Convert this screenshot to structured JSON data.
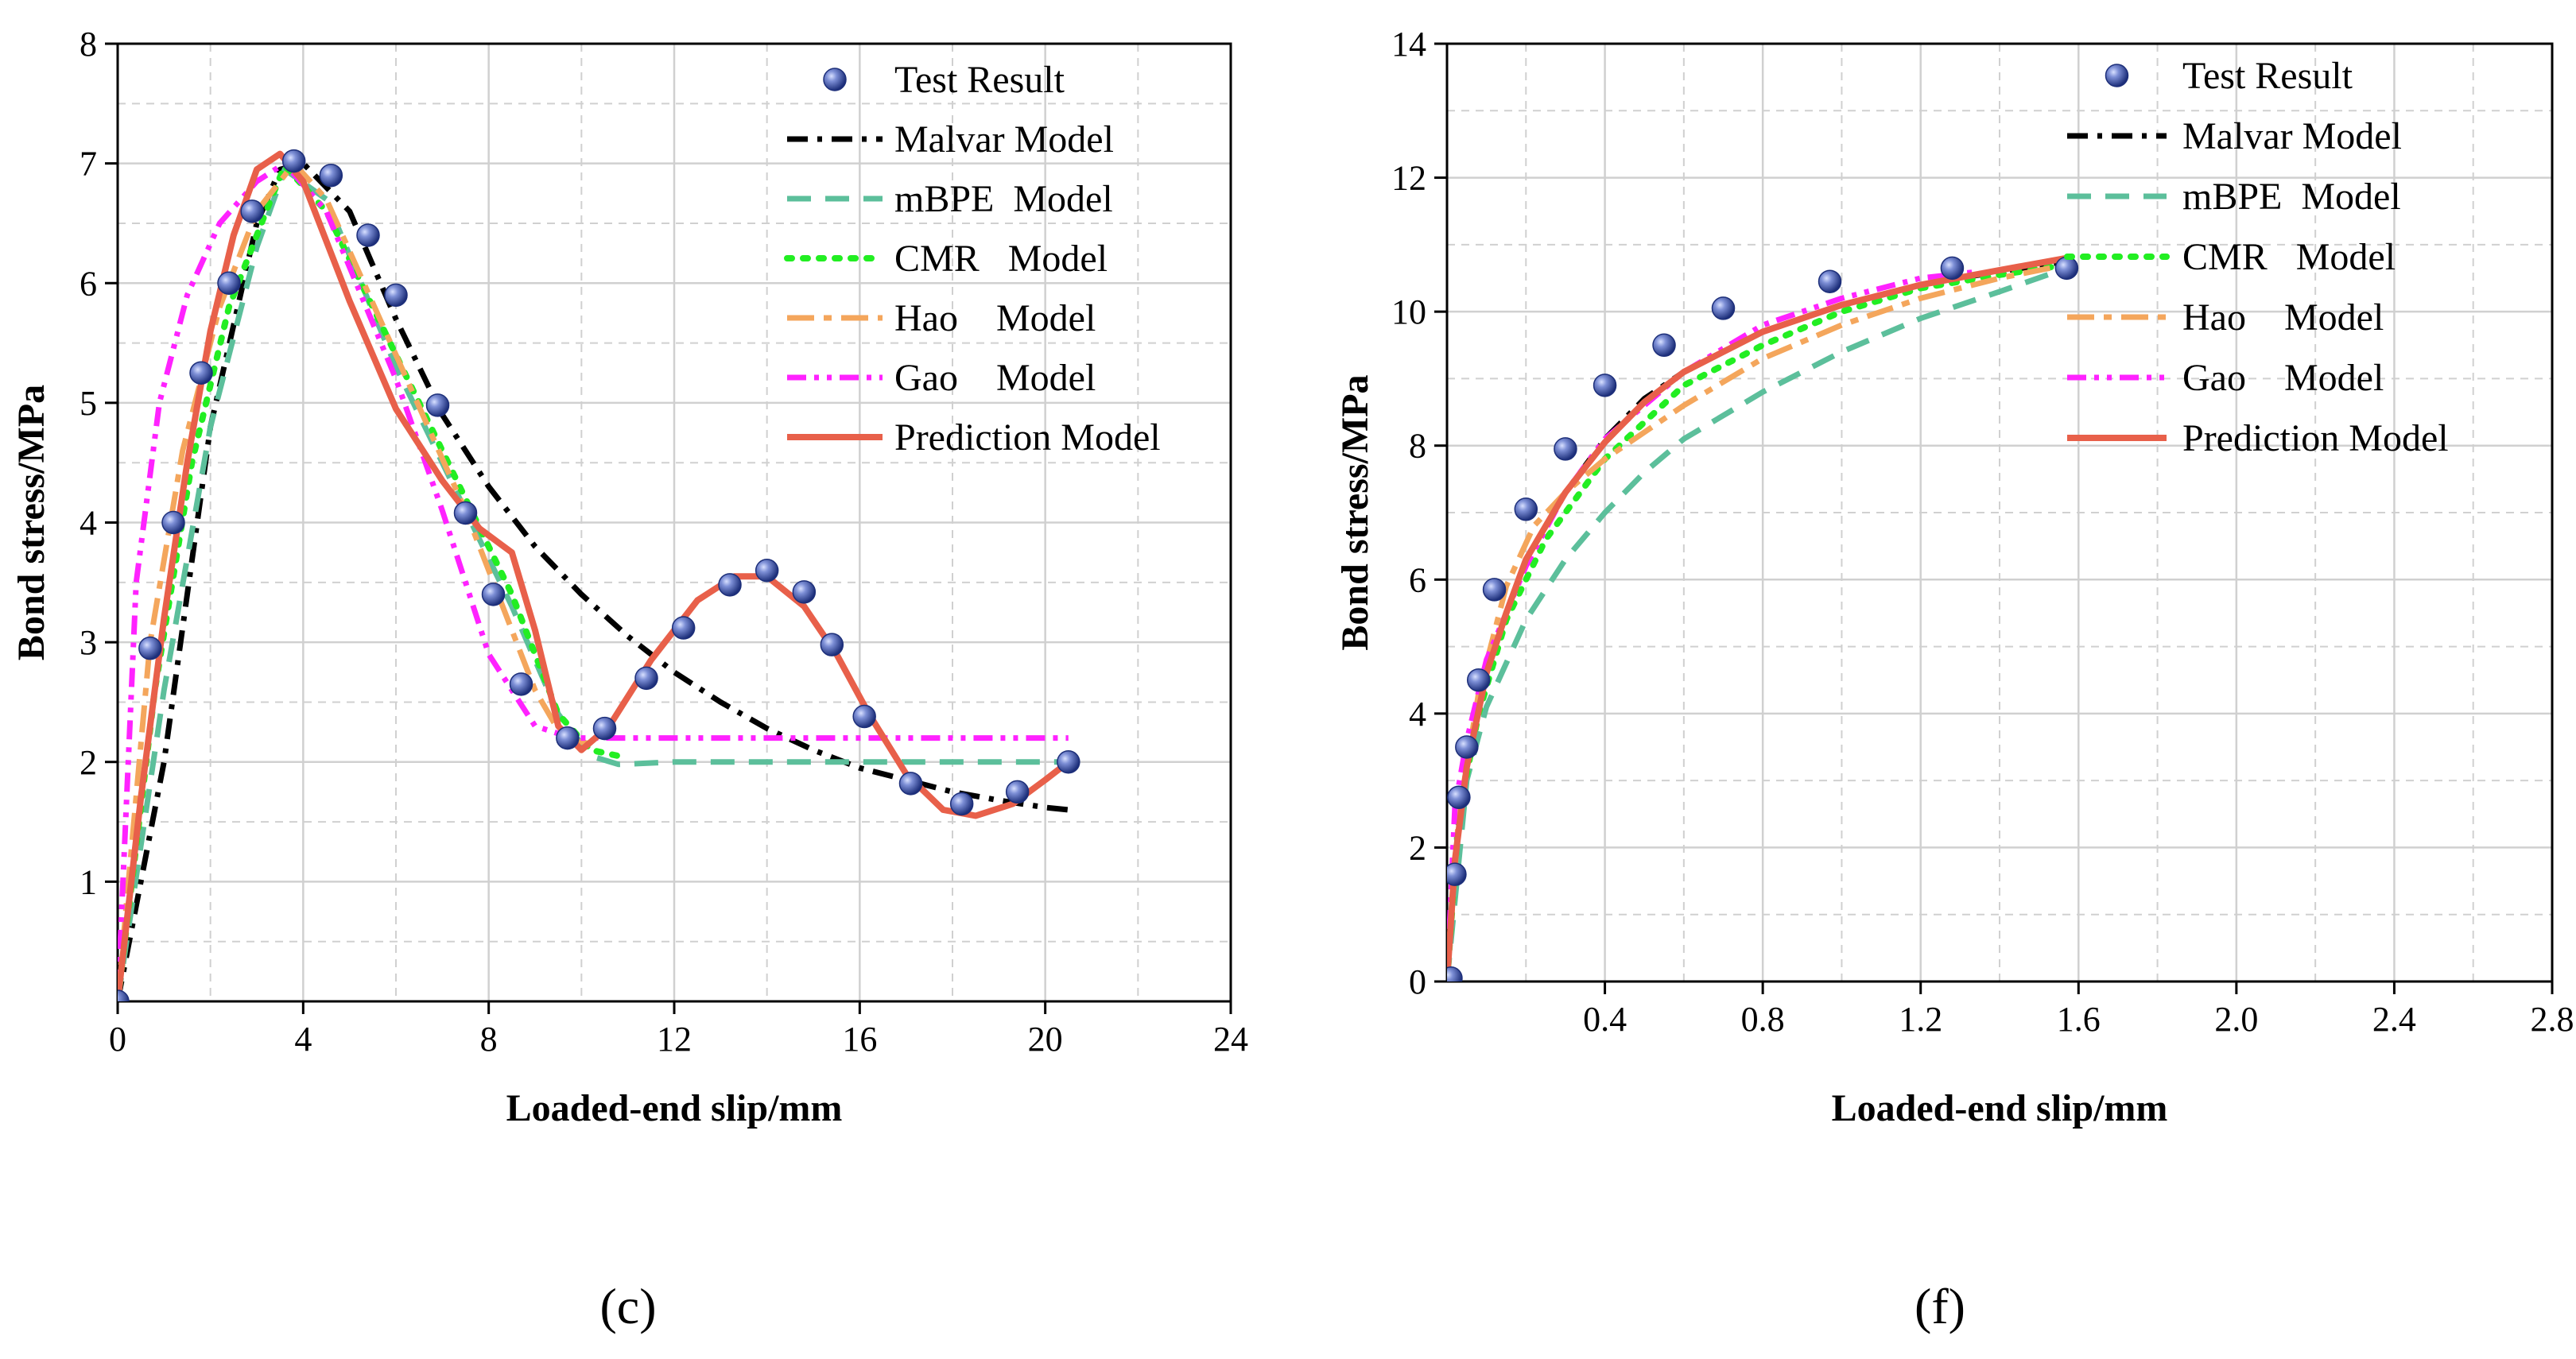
{
  "colors": {
    "test": "#3f57a8",
    "malvar": "#000000",
    "mbpe": "#5cbf9b",
    "cmr": "#22ee22",
    "hao": "#f4a65c",
    "gao": "#ff22ff",
    "prediction": "#e8604a",
    "grid": "#d0d0d0"
  },
  "chart_data": [
    {
      "type": "line",
      "panel_label": "(c)",
      "xlabel": "Loaded-end slip/mm",
      "ylabel": "Bond stress/MPa",
      "xlim": [
        0,
        24
      ],
      "ylim": [
        0,
        8
      ],
      "xticks": [
        0,
        4,
        8,
        12,
        16,
        20,
        24
      ],
      "xtick_labels": [
        "0",
        "4",
        "8",
        "12",
        "16",
        "20",
        "24"
      ],
      "yticks": [
        1,
        2,
        3,
        4,
        5,
        6,
        7,
        8
      ],
      "ytick_labels": [
        "1",
        "2",
        "3",
        "4",
        "5",
        "6",
        "7",
        "8"
      ],
      "legend_position": "top-right",
      "series": [
        {
          "name": "Test Result",
          "key": "test",
          "style": "markers",
          "x": [
            0,
            0.7,
            1.2,
            1.8,
            2.4,
            2.9,
            3.8,
            4.6,
            5.4,
            6.0,
            6.9,
            7.5,
            8.1,
            8.7,
            9.7,
            10.5,
            11.4,
            12.2,
            13.2,
            14.0,
            14.8,
            15.4,
            16.1,
            17.1,
            18.2,
            19.4,
            20.5
          ],
          "y": [
            0,
            2.95,
            4.0,
            5.25,
            6.0,
            6.6,
            7.02,
            6.9,
            6.4,
            5.9,
            4.98,
            4.08,
            3.4,
            2.65,
            2.2,
            2.28,
            2.7,
            3.12,
            3.48,
            3.6,
            3.42,
            2.98,
            2.38,
            1.82,
            1.65,
            1.75,
            2.0
          ]
        },
        {
          "name": "Malvar Model",
          "key": "malvar",
          "style": "dashdot",
          "x": [
            0,
            1,
            2,
            3,
            3.5,
            4,
            5,
            6,
            7,
            8,
            9,
            10,
            11,
            12,
            13,
            14,
            15,
            16,
            17,
            18,
            19,
            20,
            20.5
          ],
          "y": [
            0,
            2.0,
            4.8,
            6.5,
            6.95,
            7.0,
            6.6,
            5.7,
            4.9,
            4.3,
            3.8,
            3.4,
            3.05,
            2.75,
            2.5,
            2.28,
            2.1,
            1.95,
            1.85,
            1.75,
            1.68,
            1.62,
            1.6
          ]
        },
        {
          "name": "mBPE  Model",
          "key": "mbpe",
          "style": "dashed",
          "x": [
            0,
            1,
            2,
            3,
            3.6,
            4.5,
            6,
            7.5,
            8.5,
            9.5,
            10.2,
            10.8,
            12,
            16,
            20.5
          ],
          "y": [
            0,
            2.6,
            4.8,
            6.3,
            6.95,
            6.7,
            5.3,
            4.1,
            3.3,
            2.4,
            2.05,
            1.98,
            2.0,
            2.0,
            2.0
          ]
        },
        {
          "name": "CMR   Model",
          "key": "cmr",
          "style": "dotted",
          "x": [
            0,
            0.8,
            1.6,
            2.4,
            3.2,
            3.6,
            4.5,
            6,
            7.5,
            8.5,
            9.5,
            10.2,
            10.8
          ],
          "y": [
            0,
            2.6,
            4.5,
            5.8,
            6.6,
            6.98,
            6.6,
            5.4,
            4.2,
            3.4,
            2.4,
            2.1,
            2.05
          ]
        },
        {
          "name": "Hao    Model",
          "key": "hao",
          "style": "longdashdot",
          "x": [
            0,
            0.7,
            1.4,
            2.2,
            3.0,
            3.8,
            4.5,
            6,
            7.5,
            8.3,
            9.0,
            9.6,
            10.2
          ],
          "y": [
            0,
            3.0,
            4.6,
            5.8,
            6.6,
            7.0,
            6.7,
            5.4,
            4.1,
            3.3,
            2.6,
            2.2,
            2.15
          ]
        },
        {
          "name": "Gao    Model",
          "key": "gao",
          "style": "dashdotdot",
          "x": [
            0,
            0.4,
            0.9,
            1.5,
            2.2,
            3.0,
            3.6,
            4.5,
            6,
            7,
            8,
            9,
            9.8,
            10.5,
            20.5
          ],
          "y": [
            0,
            3.5,
            5.0,
            5.9,
            6.5,
            6.85,
            7.0,
            6.6,
            5.2,
            4.1,
            2.9,
            2.3,
            2.2,
            2.2,
            2.2
          ]
        },
        {
          "name": "Prediction Model",
          "key": "prediction",
          "style": "solid",
          "x": [
            0,
            0.5,
            1,
            1.5,
            2,
            2.5,
            3,
            3.5,
            4,
            5,
            6,
            7,
            7.8,
            8.5,
            9.0,
            9.5,
            10.0,
            10.6,
            11.5,
            12.5,
            13.3,
            14,
            14.8,
            15.5,
            16.2,
            17,
            17.8,
            18.5,
            19.3,
            20,
            20.5
          ],
          "y": [
            0,
            1.7,
            3.2,
            4.5,
            5.6,
            6.4,
            6.95,
            7.08,
            6.85,
            5.85,
            4.95,
            4.35,
            3.95,
            3.75,
            3.1,
            2.3,
            2.1,
            2.3,
            2.85,
            3.35,
            3.55,
            3.55,
            3.3,
            2.9,
            2.4,
            1.9,
            1.6,
            1.55,
            1.65,
            1.85,
            2.0
          ]
        }
      ],
      "legend": [
        {
          "key": "test",
          "label": "Test Result"
        },
        {
          "key": "malvar",
          "label": "Malvar Model"
        },
        {
          "key": "mbpe",
          "label": "mBPE  Model"
        },
        {
          "key": "cmr",
          "label": "CMR   Model"
        },
        {
          "key": "hao",
          "label": "Hao    Model"
        },
        {
          "key": "gao",
          "label": "Gao    Model"
        },
        {
          "key": "prediction",
          "label": "Prediction Model"
        }
      ]
    },
    {
      "type": "line",
      "panel_label": "(f)",
      "xlabel": "Loaded-end slip/mm",
      "ylabel": "Bond stress/MPa",
      "xlim": [
        0,
        2.8
      ],
      "ylim": [
        0,
        14
      ],
      "xticks": [
        0.4,
        0.8,
        1.2,
        1.6,
        2.0,
        2.4,
        2.8
      ],
      "xtick_labels": [
        "0.4",
        "0.8",
        "1.2",
        "1.6",
        "2.0",
        "2.4",
        "2.8"
      ],
      "yticks": [
        0,
        2,
        4,
        6,
        8,
        10,
        12,
        14
      ],
      "ytick_labels": [
        "0",
        "2",
        "4",
        "6",
        "8",
        "10",
        "12",
        "14"
      ],
      "legend_position": "top-right",
      "series": [
        {
          "name": "Test Result",
          "key": "test",
          "style": "markers",
          "x": [
            0.01,
            0.02,
            0.03,
            0.05,
            0.08,
            0.12,
            0.2,
            0.3,
            0.4,
            0.55,
            0.7,
            0.97,
            1.28,
            1.57
          ],
          "y": [
            0.05,
            1.6,
            2.75,
            3.5,
            4.5,
            5.85,
            7.05,
            7.95,
            8.9,
            9.5,
            10.05,
            10.45,
            10.65,
            10.65
          ]
        },
        {
          "name": "Malvar Model",
          "key": "malvar",
          "style": "dashdot",
          "x": [
            0,
            0.02,
            0.05,
            0.1,
            0.15,
            0.2,
            0.3,
            0.4,
            0.5,
            0.6,
            0.8,
            1.0,
            1.2,
            1.4,
            1.57
          ],
          "y": [
            0,
            1.8,
            3.2,
            4.6,
            5.5,
            6.3,
            7.3,
            8.1,
            8.7,
            9.1,
            9.7,
            10.1,
            10.4,
            10.6,
            10.75
          ]
        },
        {
          "name": "mBPE  Model",
          "key": "mbpe",
          "style": "dashed",
          "x": [
            0,
            0.05,
            0.1,
            0.2,
            0.3,
            0.4,
            0.5,
            0.6,
            0.8,
            1.0,
            1.2,
            1.4,
            1.57
          ],
          "y": [
            0,
            3.0,
            4.1,
            5.4,
            6.3,
            7.0,
            7.6,
            8.1,
            8.8,
            9.4,
            9.9,
            10.3,
            10.65
          ]
        },
        {
          "name": "CMR   Model",
          "key": "cmr",
          "style": "dotted",
          "x": [
            0,
            0.03,
            0.08,
            0.15,
            0.25,
            0.4,
            0.6,
            0.8,
            1.0,
            1.2,
            1.4,
            1.57
          ],
          "y": [
            0,
            2.5,
            4.0,
            5.4,
            6.6,
            7.8,
            8.9,
            9.5,
            10.0,
            10.35,
            10.55,
            10.7
          ]
        },
        {
          "name": "Hao    Model",
          "key": "hao",
          "style": "longdashdot",
          "x": [
            0,
            0.03,
            0.08,
            0.15,
            0.22,
            0.3,
            0.4,
            0.6,
            0.8,
            1.0,
            1.2,
            1.4,
            1.57
          ],
          "y": [
            0,
            2.5,
            4.3,
            5.9,
            6.8,
            7.3,
            7.8,
            8.6,
            9.3,
            9.8,
            10.2,
            10.5,
            10.7
          ]
        },
        {
          "name": "Gao    Model",
          "key": "gao",
          "style": "dashdotdot",
          "x": [
            0,
            0.02,
            0.05,
            0.1,
            0.2,
            0.3,
            0.4,
            0.6,
            0.8,
            1.0,
            1.2,
            1.35
          ],
          "y": [
            0,
            2.6,
            3.6,
            4.8,
            6.2,
            7.3,
            8.1,
            9.1,
            9.8,
            10.2,
            10.5,
            10.6
          ]
        },
        {
          "name": "Prediction Model",
          "key": "prediction",
          "style": "solid",
          "x": [
            0,
            0.02,
            0.05,
            0.1,
            0.15,
            0.2,
            0.3,
            0.4,
            0.5,
            0.6,
            0.8,
            1.0,
            1.2,
            1.4,
            1.57
          ],
          "y": [
            0,
            1.8,
            3.2,
            4.6,
            5.5,
            6.3,
            7.3,
            8.05,
            8.65,
            9.1,
            9.7,
            10.1,
            10.4,
            10.62,
            10.8
          ]
        }
      ],
      "legend": [
        {
          "key": "test",
          "label": "Test Result"
        },
        {
          "key": "malvar",
          "label": "Malvar Model"
        },
        {
          "key": "mbpe",
          "label": "mBPE  Model"
        },
        {
          "key": "cmr",
          "label": "CMR   Model"
        },
        {
          "key": "hao",
          "label": "Hao    Model"
        },
        {
          "key": "gao",
          "label": "Gao    Model"
        },
        {
          "key": "prediction",
          "label": "Prediction Model"
        }
      ]
    }
  ]
}
